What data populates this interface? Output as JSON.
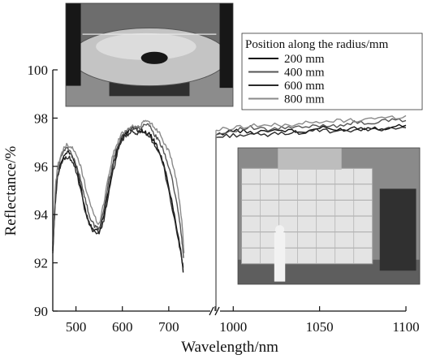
{
  "chart_data": {
    "type": "line",
    "title": "",
    "xlabel": "Wavelength/nm",
    "ylabel": "Reflectance/%",
    "ylim": [
      90,
      100
    ],
    "yticks": [
      90,
      92,
      94,
      96,
      98,
      100
    ],
    "x_axis_break": true,
    "x_segments": [
      {
        "xlim": [
          450,
          800
        ],
        "ticks": [
          500,
          600,
          700,
          800
        ]
      },
      {
        "xlim": [
          990,
          1100
        ],
        "ticks": [
          1000,
          1050,
          1100
        ]
      }
    ],
    "x_tick_labels": [
      "500",
      "600",
      "700",
      "1000",
      "1050",
      "1100"
    ],
    "grid": false,
    "legend": {
      "title": "Position along the radius/mm",
      "placement": "top-right"
    },
    "series": [
      {
        "name": "200 mm",
        "color": "#111111",
        "points": [
          [
            450,
            92.5
          ],
          [
            455,
            94.5
          ],
          [
            460,
            95.6
          ],
          [
            470,
            96.3
          ],
          [
            480,
            96.6
          ],
          [
            490,
            96.5
          ],
          [
            500,
            96.0
          ],
          [
            510,
            95.2
          ],
          [
            520,
            94.2
          ],
          [
            530,
            93.6
          ],
          [
            540,
            93.4
          ],
          [
            550,
            93.3
          ],
          [
            560,
            94.0
          ],
          [
            570,
            95.0
          ],
          [
            580,
            96.0
          ],
          [
            590,
            96.8
          ],
          [
            600,
            97.2
          ],
          [
            610,
            97.4
          ],
          [
            620,
            97.6
          ],
          [
            630,
            97.5
          ],
          [
            640,
            97.5
          ],
          [
            650,
            97.4
          ],
          [
            660,
            97.3
          ],
          [
            670,
            97.0
          ],
          [
            680,
            96.6
          ],
          [
            690,
            96.0
          ],
          [
            700,
            95.2
          ],
          [
            710,
            94.2
          ],
          [
            720,
            93.2
          ],
          [
            727,
            92.4
          ],
          [
            731,
            91.6
          ],
          [
            990,
            97.3
          ],
          [
            1000,
            97.5
          ],
          [
            1010,
            97.4
          ],
          [
            1020,
            97.5
          ],
          [
            1030,
            97.5
          ],
          [
            1040,
            97.4
          ],
          [
            1050,
            97.6
          ],
          [
            1060,
            97.5
          ],
          [
            1070,
            97.6
          ],
          [
            1080,
            97.6
          ],
          [
            1090,
            97.6
          ],
          [
            1100,
            97.7
          ]
        ]
      },
      {
        "name": "400 mm",
        "color": "#555555",
        "points": [
          [
            450,
            92.6
          ],
          [
            455,
            94.8
          ],
          [
            460,
            95.8
          ],
          [
            470,
            96.5
          ],
          [
            480,
            96.8
          ],
          [
            490,
            96.5
          ],
          [
            500,
            96.1
          ],
          [
            510,
            95.5
          ],
          [
            520,
            94.6
          ],
          [
            530,
            93.9
          ],
          [
            540,
            93.5
          ],
          [
            550,
            93.4
          ],
          [
            560,
            94.2
          ],
          [
            570,
            95.3
          ],
          [
            580,
            96.2
          ],
          [
            590,
            96.9
          ],
          [
            600,
            97.3
          ],
          [
            610,
            97.5
          ],
          [
            620,
            97.6
          ],
          [
            630,
            97.6
          ],
          [
            640,
            97.6
          ],
          [
            650,
            97.8
          ],
          [
            660,
            97.6
          ],
          [
            670,
            97.3
          ],
          [
            680,
            97.0
          ],
          [
            690,
            96.6
          ],
          [
            700,
            96.0
          ],
          [
            710,
            95.2
          ],
          [
            720,
            94.2
          ],
          [
            728,
            93.0
          ],
          [
            732,
            92.2
          ],
          [
            990,
            97.3
          ],
          [
            1000,
            97.5
          ],
          [
            1010,
            97.6
          ],
          [
            1020,
            97.5
          ],
          [
            1030,
            97.6
          ],
          [
            1040,
            97.6
          ],
          [
            1050,
            97.7
          ],
          [
            1060,
            97.7
          ],
          [
            1070,
            97.8
          ],
          [
            1080,
            97.8
          ],
          [
            1090,
            97.9
          ],
          [
            1100,
            97.9
          ]
        ]
      },
      {
        "name": "600 mm",
        "color": "#2a2a2a",
        "points": [
          [
            450,
            92.4
          ],
          [
            455,
            94.4
          ],
          [
            460,
            95.5
          ],
          [
            470,
            96.2
          ],
          [
            480,
            96.4
          ],
          [
            490,
            96.3
          ],
          [
            500,
            95.8
          ],
          [
            510,
            95.0
          ],
          [
            520,
            94.1
          ],
          [
            530,
            93.5
          ],
          [
            540,
            93.3
          ],
          [
            550,
            93.2
          ],
          [
            560,
            93.8
          ],
          [
            570,
            94.8
          ],
          [
            580,
            95.8
          ],
          [
            590,
            96.6
          ],
          [
            600,
            97.1
          ],
          [
            610,
            97.3
          ],
          [
            620,
            97.4
          ],
          [
            630,
            97.4
          ],
          [
            640,
            97.4
          ],
          [
            650,
            97.3
          ],
          [
            660,
            97.2
          ],
          [
            670,
            96.9
          ],
          [
            680,
            96.5
          ],
          [
            690,
            95.9
          ],
          [
            700,
            95.0
          ],
          [
            710,
            94.0
          ],
          [
            720,
            93.0
          ],
          [
            727,
            92.3
          ],
          [
            731,
            91.8
          ],
          [
            990,
            97.2
          ],
          [
            1000,
            97.3
          ],
          [
            1010,
            97.3
          ],
          [
            1020,
            97.3
          ],
          [
            1030,
            97.4
          ],
          [
            1040,
            97.4
          ],
          [
            1050,
            97.5
          ],
          [
            1060,
            97.4
          ],
          [
            1070,
            97.5
          ],
          [
            1080,
            97.5
          ],
          [
            1090,
            97.6
          ],
          [
            1100,
            97.6
          ]
        ]
      },
      {
        "name": "800 mm",
        "color": "#8a8a8a",
        "points": [
          [
            450,
            92.8
          ],
          [
            455,
            95.0
          ],
          [
            460,
            96.0
          ],
          [
            470,
            96.6
          ],
          [
            480,
            96.9
          ],
          [
            490,
            96.8
          ],
          [
            500,
            96.5
          ],
          [
            510,
            96.0
          ],
          [
            520,
            95.2
          ],
          [
            530,
            94.5
          ],
          [
            540,
            93.9
          ],
          [
            550,
            93.6
          ],
          [
            560,
            94.5
          ],
          [
            570,
            95.6
          ],
          [
            580,
            96.5
          ],
          [
            590,
            97.0
          ],
          [
            600,
            97.4
          ],
          [
            610,
            97.5
          ],
          [
            620,
            97.7
          ],
          [
            630,
            97.6
          ],
          [
            640,
            97.7
          ],
          [
            650,
            97.9
          ],
          [
            660,
            97.8
          ],
          [
            670,
            97.6
          ],
          [
            680,
            97.4
          ],
          [
            690,
            97.0
          ],
          [
            700,
            96.6
          ],
          [
            710,
            96.0
          ],
          [
            720,
            95.0
          ],
          [
            728,
            93.8
          ],
          [
            733,
            92.4
          ],
          [
            990,
            97.5
          ],
          [
            1000,
            97.6
          ],
          [
            1010,
            97.7
          ],
          [
            1020,
            97.7
          ],
          [
            1030,
            97.7
          ],
          [
            1040,
            97.8
          ],
          [
            1050,
            97.8
          ],
          [
            1060,
            97.9
          ],
          [
            1070,
            97.9
          ],
          [
            1080,
            98.0
          ],
          [
            1090,
            98.0
          ],
          [
            1100,
            98.1
          ]
        ]
      }
    ]
  },
  "photos": [
    {
      "name": "photo-mirror-table",
      "subject": "mirror-table",
      "colors": {
        "bg": "#6d6d6d",
        "dark": "#2f2f2f",
        "light": "#c4c4c4",
        "accent": "#171717"
      }
    },
    {
      "name": "photo-coating-chamber",
      "subject": "coating-chamber",
      "colors": {
        "bg": "#8a8a8a",
        "dark": "#303030",
        "light": "#e4e4e4",
        "accent": "#bdbdbd"
      }
    }
  ]
}
